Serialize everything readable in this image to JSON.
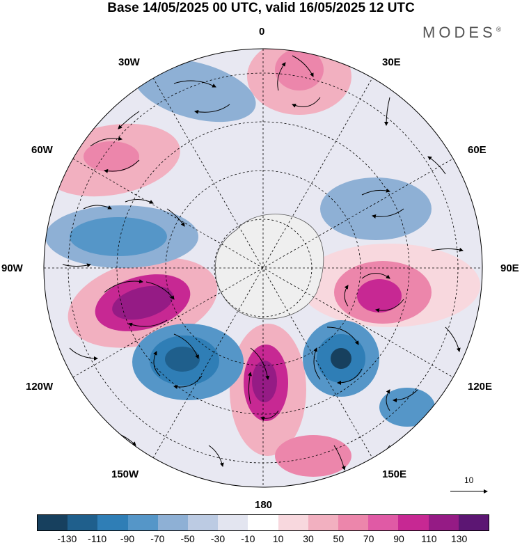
{
  "title": "Base 14/05/2025 00 UTC, valid 16/05/2025 12 UTC",
  "brand": "MODES",
  "brand_mark": "®",
  "longitude_labels": {
    "lon_0": "0",
    "lon_30e": "30E",
    "lon_60e": "60E",
    "lon_90e": "90E",
    "lon_120e": "120E",
    "lon_150e": "150E",
    "lon_180": "180",
    "lon_150w": "150W",
    "lon_120w": "120W",
    "lon_90w": "90W",
    "lon_60w": "60W",
    "lon_30w": "30W"
  },
  "reference_vector": "10",
  "colorbar": {
    "colors": [
      "#17405e",
      "#1f5f8c",
      "#2f7eb6",
      "#5596c8",
      "#8eb0d5",
      "#bccbe3",
      "#e3e5f0",
      "#ffffff",
      "#f8d8de",
      "#f2b0c0",
      "#ec86ab",
      "#e05aa5",
      "#c72893",
      "#951b85",
      "#5c1673"
    ],
    "tick_labels": [
      "-130",
      "-110",
      "-90",
      "-70",
      "-50",
      "-30",
      "-10",
      "10",
      "30",
      "50",
      "70",
      "90",
      "110",
      "130"
    ]
  }
}
